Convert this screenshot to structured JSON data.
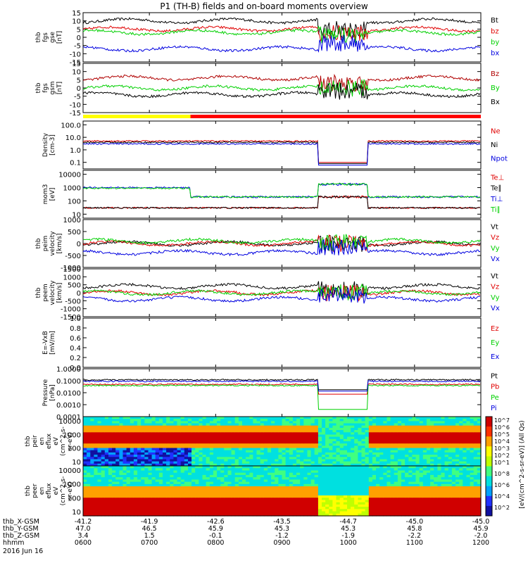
{
  "title": "P1 (TH-B) fields and on-board moments overview",
  "chart_data": [
    {
      "type": "line",
      "panel": "fgs_gse",
      "ylabel": [
        "thb",
        "fgs",
        "gse",
        "[nT]"
      ],
      "ylim": [
        -15,
        15
      ],
      "yticks": [
        "15",
        "10",
        "5",
        "0",
        "-5",
        "-10",
        "-15"
      ],
      "series": [
        {
          "name": "Bt",
          "color": "#000000",
          "base": 10
        },
        {
          "name": "bz",
          "color": "#e00000",
          "base": 5
        },
        {
          "name": "by",
          "color": "#00d000",
          "base": 3
        },
        {
          "name": "bx",
          "color": "#0000e0",
          "base": -7
        }
      ]
    },
    {
      "type": "line",
      "panel": "fgs_gsm",
      "ylabel": [
        "thb",
        "fgs",
        "gsm",
        "[nT]"
      ],
      "ylim": [
        -15,
        15
      ],
      "yticks": [
        "15",
        "10",
        "5",
        "0",
        "-5",
        "-10",
        "-15"
      ],
      "series": [
        {
          "name": "Bz",
          "color": "#b00000",
          "base": 6
        },
        {
          "name": "By",
          "color": "#00d000",
          "base": 0
        },
        {
          "name": "Bx",
          "color": "#000000",
          "base": -4
        }
      ]
    },
    {
      "type": "line",
      "panel": "density",
      "ylabel": [
        "Density",
        "[cm-3]"
      ],
      "scale": "log",
      "ylim": [
        0.03,
        200
      ],
      "yticks": [
        "100.0",
        "10.0",
        "1.0",
        "0.1"
      ],
      "series": [
        {
          "name": "Ne",
          "color": "#e00000",
          "base": 5
        },
        {
          "name": "Ni",
          "color": "#000000",
          "base": 4
        },
        {
          "name": "Npot",
          "color": "#0000e0",
          "base": 3
        }
      ]
    },
    {
      "type": "line",
      "panel": "temperature",
      "ylabel": [
        "mom3",
        "[eV]"
      ],
      "scale": "log",
      "ylim": [
        5,
        20000
      ],
      "yticks": [
        "10000",
        "1000",
        "100",
        "10"
      ],
      "series": [
        {
          "name": "Te⊥",
          "color": "#e00000",
          "base": 30
        },
        {
          "name": "Te∥",
          "color": "#000000",
          "base": 30
        },
        {
          "name": "Ti⊥",
          "color": "#0000e0",
          "base": 1000
        },
        {
          "name": "Ti∥",
          "color": "#00d000",
          "base": 900
        }
      ]
    },
    {
      "type": "line",
      "panel": "peim_velocity",
      "ylabel": [
        "thb",
        "peim",
        "velocity",
        "[km/s]"
      ],
      "ylim": [
        -1000,
        1000
      ],
      "yticks": [
        "1000",
        "500",
        "0",
        "-500",
        "-1000"
      ],
      "series": [
        {
          "name": "Vt",
          "color": "#000000",
          "base": 0
        },
        {
          "name": "Vz",
          "color": "#e00000",
          "base": 0
        },
        {
          "name": "Vy",
          "color": "#00d000",
          "base": 100
        },
        {
          "name": "Vx",
          "color": "#0000e0",
          "base": -380
        }
      ]
    },
    {
      "type": "line",
      "panel": "peem_velocity",
      "ylabel": [
        "thb",
        "peem",
        "velocity",
        "[km/s]"
      ],
      "ylim": [
        -1500,
        1500
      ],
      "yticks": [
        "1500",
        "1000",
        "500",
        "0",
        "-500",
        "-1000",
        "-1500"
      ],
      "series": [
        {
          "name": "Vt",
          "color": "#000000",
          "base": 400
        },
        {
          "name": "Vz",
          "color": "#e00000",
          "base": 0
        },
        {
          "name": "Vy",
          "color": "#00d000",
          "base": 0
        },
        {
          "name": "Vx",
          "color": "#0000e0",
          "base": -400
        }
      ]
    },
    {
      "type": "line",
      "panel": "efield",
      "ylabel": [
        "E=-VxB",
        "[mV/m]"
      ],
      "ylim": [
        0,
        1
      ],
      "yticks": [
        "1.0",
        "0.8",
        "0.6",
        "0.4",
        "0.2",
        "0.0"
      ],
      "series": [
        {
          "name": "Ez",
          "color": "#e00000"
        },
        {
          "name": "Ey",
          "color": "#00d000"
        },
        {
          "name": "Ex",
          "color": "#0000e0"
        }
      ]
    },
    {
      "type": "line",
      "panel": "pressure",
      "ylabel": [
        "Pressure",
        "[nPa]"
      ],
      "scale": "log",
      "ylim": [
        0.0001,
        1
      ],
      "yticks": [
        "1.0000",
        "0.1000",
        "0.0100",
        "0.0010",
        "0.0001"
      ],
      "series": [
        {
          "name": "Pt",
          "color": "#000000",
          "base": 0.12
        },
        {
          "name": "Pb",
          "color": "#e00000",
          "base": 0.05
        },
        {
          "name": "Pe",
          "color": "#00d000",
          "base": 0.04
        },
        {
          "name": "Pi",
          "color": "#0000e0",
          "base": 0.09
        }
      ]
    },
    {
      "type": "heatmap",
      "panel": "peir_spectrogram",
      "ylabel": [
        "thb",
        "peir",
        "en",
        "eflux",
        "eV",
        "(cm^2-s-",
        "sr-eV)"
      ],
      "scale": "log",
      "ylim": [
        5,
        20000
      ],
      "yticks": [
        "10000",
        "1000",
        "100",
        "10"
      ]
    },
    {
      "type": "heatmap",
      "panel": "peer_spectrogram",
      "ylabel": [
        "thb",
        "peer",
        "en",
        "eflux",
        "eV",
        "(cm^2-s-",
        "sr-eV)"
      ],
      "scale": "log",
      "ylim": [
        5,
        20000
      ],
      "yticks": [
        "10000",
        "1000",
        "100",
        "10"
      ]
    }
  ],
  "colorbar": {
    "label": "[eV/(cm^2-s-sr-eV)] (All Qs)",
    "ticks": [
      "10^7",
      "10^6",
      "10^5",
      "10^4",
      "10^3",
      "10^2",
      "10^1"
    ],
    "ticks2": [
      "10^8",
      "10^6",
      "10^4",
      "10^2"
    ]
  },
  "xaxis": {
    "rows": [
      {
        "label": "thb_X-GSM",
        "values": [
          "-41.2",
          "-41.9",
          "-42.6",
          "-43.5",
          "-44.7",
          "-45.0",
          "-45.0"
        ]
      },
      {
        "label": "thb_Y-GSM",
        "values": [
          "47.0",
          "46.5",
          "45.9",
          "45.3",
          "45.3",
          "45.8",
          "45.9"
        ]
      },
      {
        "label": "thb_Z-GSM",
        "values": [
          "3.4",
          "1.5",
          "-0.1",
          "-1.2",
          "-1.9",
          "-2.2",
          "-2.0"
        ]
      },
      {
        "label": "hhmm",
        "values": [
          "0600",
          "0700",
          "0800",
          "0900",
          "1000",
          "1100",
          "1200"
        ]
      }
    ],
    "date": "2016 Jun 16"
  }
}
